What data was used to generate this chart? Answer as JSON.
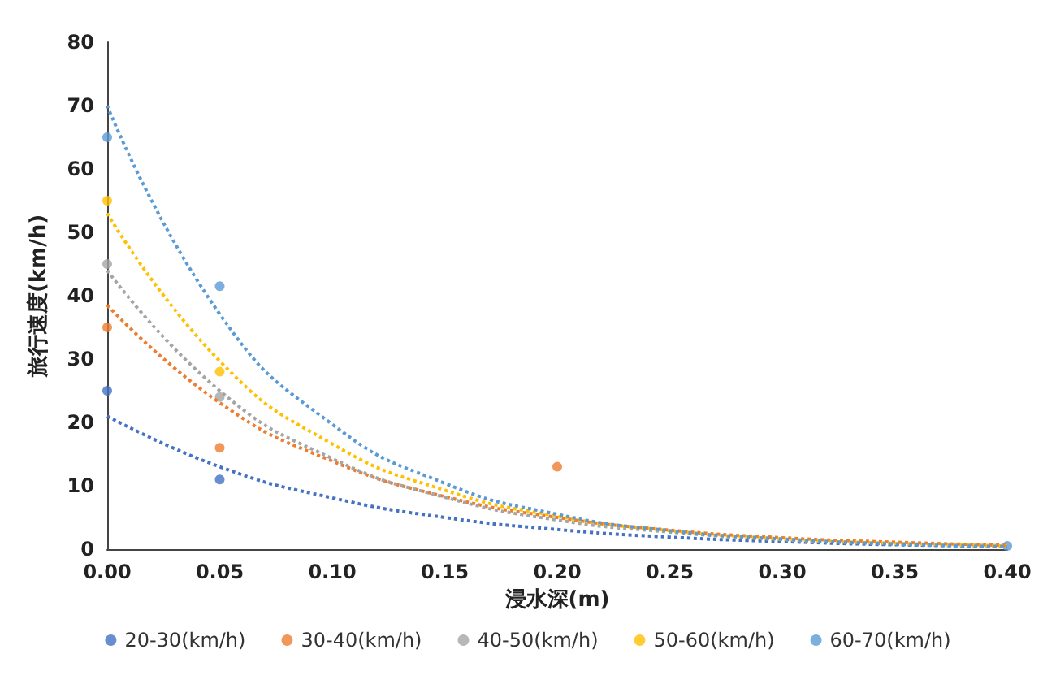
{
  "chart_data": {
    "type": "scatter",
    "xlabel": "浸水深(m)",
    "ylabel": "旅行速度(km/h)",
    "xlim": [
      0,
      0.4
    ],
    "ylim": [
      0,
      80
    ],
    "xticks": [
      {
        "value": 0,
        "label": "0.00"
      },
      {
        "value": 0.05,
        "label": "0.05"
      },
      {
        "value": 0.1,
        "label": "0.10"
      },
      {
        "value": 0.15,
        "label": "0.15"
      },
      {
        "value": 0.2,
        "label": "0.20"
      },
      {
        "value": 0.25,
        "label": "0.25"
      },
      {
        "value": 0.3,
        "label": "0.30"
      },
      {
        "value": 0.35,
        "label": "0.35"
      },
      {
        "value": 0.4,
        "label": "0.40"
      }
    ],
    "yticks": [
      0,
      10,
      20,
      30,
      40,
      50,
      60,
      70,
      80
    ],
    "grid": false,
    "legend": "bottom",
    "marker": "circle",
    "series": [
      {
        "name": "20-30(km/h)",
        "color": "#4472c4",
        "x": [
          0,
          0.05
        ],
        "values": [
          25,
          11
        ]
      },
      {
        "name": "30-40(km/h)",
        "color": "#ed7d31",
        "x": [
          0,
          0.05,
          0.2
        ],
        "values": [
          35,
          16,
          13
        ]
      },
      {
        "name": "40-50(km/h)",
        "color": "#a5a5a5",
        "x": [
          0,
          0.05
        ],
        "values": [
          45,
          24
        ]
      },
      {
        "name": "50-60(km/h)",
        "color": "#ffc000",
        "x": [
          0,
          0.05
        ],
        "values": [
          55,
          28
        ]
      },
      {
        "name": "60-70(km/h)",
        "color": "#5b9bd5",
        "x": [
          0,
          0.05,
          0.4
        ],
        "values": [
          65,
          41.5,
          0.5
        ]
      },
      {
        "type": "line",
        "line_style": "dotted",
        "marker": "none",
        "color": "#4472c4",
        "x": [
          0,
          0.05,
          0.1,
          0.15,
          0.2,
          0.25,
          0.3,
          0.35,
          0.4
        ],
        "values": [
          21,
          13,
          8.1,
          5,
          3.1,
          1.9,
          1.2,
          0.7,
          0.5
        ]
      },
      {
        "type": "line",
        "line_style": "dotted",
        "marker": "none",
        "color": "#ed7d31",
        "x": [
          0,
          0.05,
          0.1,
          0.15,
          0.2,
          0.25,
          0.3,
          0.35,
          0.4
        ],
        "values": [
          38.5,
          23.1,
          13.9,
          8.3,
          5,
          3,
          1.8,
          1.1,
          0.6
        ]
      },
      {
        "type": "line",
        "line_style": "dotted",
        "marker": "none",
        "color": "#a5a5a5",
        "x": [
          0,
          0.05,
          0.1,
          0.15,
          0.2,
          0.25,
          0.3,
          0.35,
          0.4
        ],
        "values": [
          44,
          25,
          14.3,
          8.2,
          4.6,
          2.7,
          1.5,
          0.9,
          0.5
        ]
      },
      {
        "type": "line",
        "line_style": "dotted",
        "marker": "none",
        "color": "#ffc000",
        "x": [
          0,
          0.05,
          0.1,
          0.15,
          0.2,
          0.25,
          0.3,
          0.35,
          0.4
        ],
        "values": [
          53,
          29.7,
          16.6,
          9.3,
          5.2,
          2.9,
          1.6,
          0.9,
          0.5
        ]
      },
      {
        "type": "line",
        "line_style": "dotted",
        "marker": "none",
        "color": "#5b9bd5",
        "x": [
          0,
          0.05,
          0.1,
          0.15,
          0.2,
          0.25,
          0.3,
          0.35,
          0.4
        ],
        "values": [
          70,
          37.1,
          19.7,
          10.4,
          5.5,
          2.9,
          1.6,
          0.8,
          0.4
        ]
      }
    ]
  }
}
